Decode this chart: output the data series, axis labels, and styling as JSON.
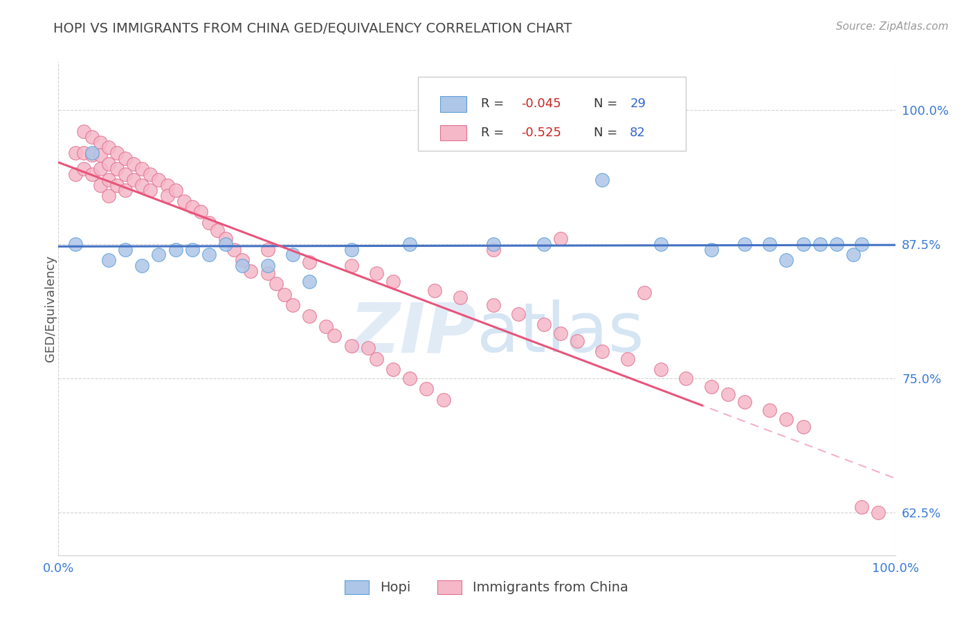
{
  "title": "HOPI VS IMMIGRANTS FROM CHINA GED/EQUIVALENCY CORRELATION CHART",
  "source": "Source: ZipAtlas.com",
  "ylabel": "GED/Equivalency",
  "yticks": [
    0.625,
    0.75,
    0.875,
    1.0
  ],
  "ytick_labels": [
    "62.5%",
    "75.0%",
    "87.5%",
    "100.0%"
  ],
  "xlim": [
    0.0,
    1.0
  ],
  "ylim": [
    0.585,
    1.045
  ],
  "hopi_R": -0.045,
  "hopi_N": 29,
  "china_R": -0.525,
  "china_N": 82,
  "hopi_color": "#aec6e8",
  "china_color": "#f5b8c8",
  "hopi_line_color": "#4472c4",
  "china_line_color": "#e8547a",
  "hopi_marker_edge": "#5a9ed6",
  "china_marker_edge": "#e07090",
  "legend_label_hopi": "Hopi",
  "legend_label_china": "Immigrants from China",
  "watermark_zip": "ZIP",
  "watermark_atlas": "atlas",
  "background_color": "#ffffff",
  "grid_color": "#cccccc",
  "hopi_x": [
    0.02,
    0.04,
    0.06,
    0.08,
    0.1,
    0.12,
    0.14,
    0.16,
    0.18,
    0.2,
    0.22,
    0.25,
    0.28,
    0.3,
    0.35,
    0.42,
    0.58,
    0.65,
    0.72,
    0.78,
    0.82,
    0.85,
    0.87,
    0.89,
    0.91,
    0.93,
    0.95,
    0.96,
    0.52
  ],
  "hopi_y": [
    0.875,
    0.96,
    0.86,
    0.87,
    0.855,
    0.865,
    0.87,
    0.87,
    0.865,
    0.875,
    0.855,
    0.855,
    0.865,
    0.84,
    0.87,
    0.875,
    0.875,
    0.935,
    0.875,
    0.87,
    0.875,
    0.875,
    0.86,
    0.875,
    0.875,
    0.875,
    0.865,
    0.875,
    0.875
  ],
  "china_x": [
    0.02,
    0.02,
    0.03,
    0.03,
    0.03,
    0.04,
    0.04,
    0.04,
    0.05,
    0.05,
    0.05,
    0.05,
    0.06,
    0.06,
    0.06,
    0.06,
    0.07,
    0.07,
    0.07,
    0.08,
    0.08,
    0.08,
    0.09,
    0.09,
    0.1,
    0.1,
    0.11,
    0.11,
    0.12,
    0.13,
    0.13,
    0.14,
    0.15,
    0.16,
    0.17,
    0.18,
    0.19,
    0.2,
    0.21,
    0.22,
    0.23,
    0.25,
    0.26,
    0.27,
    0.28,
    0.3,
    0.32,
    0.33,
    0.35,
    0.37,
    0.38,
    0.4,
    0.42,
    0.44,
    0.46,
    0.25,
    0.3,
    0.35,
    0.38,
    0.4,
    0.45,
    0.48,
    0.52,
    0.55,
    0.58,
    0.6,
    0.62,
    0.65,
    0.68,
    0.72,
    0.75,
    0.78,
    0.8,
    0.82,
    0.85,
    0.87,
    0.89,
    0.6,
    0.52,
    0.7,
    0.96,
    0.98
  ],
  "china_y": [
    0.96,
    0.94,
    0.98,
    0.96,
    0.945,
    0.975,
    0.958,
    0.94,
    0.97,
    0.958,
    0.945,
    0.93,
    0.965,
    0.95,
    0.935,
    0.92,
    0.96,
    0.945,
    0.93,
    0.955,
    0.94,
    0.925,
    0.95,
    0.935,
    0.945,
    0.93,
    0.94,
    0.925,
    0.935,
    0.93,
    0.92,
    0.925,
    0.915,
    0.91,
    0.905,
    0.895,
    0.888,
    0.88,
    0.87,
    0.86,
    0.85,
    0.848,
    0.838,
    0.828,
    0.818,
    0.808,
    0.798,
    0.79,
    0.78,
    0.778,
    0.768,
    0.758,
    0.75,
    0.74,
    0.73,
    0.87,
    0.858,
    0.855,
    0.848,
    0.84,
    0.832,
    0.825,
    0.818,
    0.81,
    0.8,
    0.792,
    0.785,
    0.775,
    0.768,
    0.758,
    0.75,
    0.742,
    0.735,
    0.728,
    0.72,
    0.712,
    0.705,
    0.88,
    0.87,
    0.83,
    0.63,
    0.625
  ]
}
